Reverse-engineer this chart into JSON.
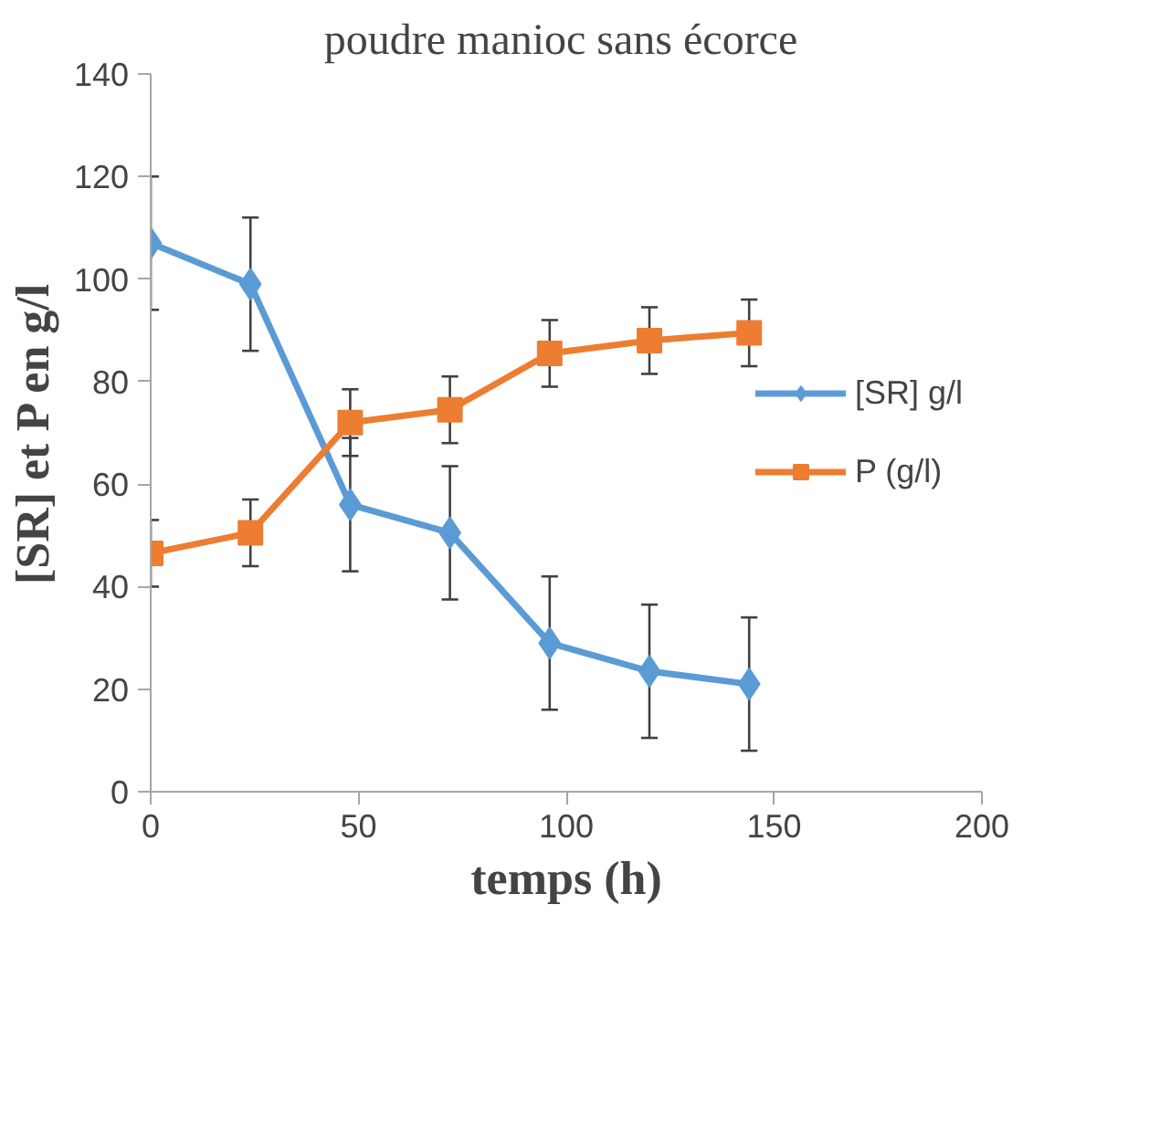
{
  "chart_data": {
    "type": "line",
    "title": "poudre  manioc sans écorce",
    "xlabel": "temps (h)",
    "ylabel": "[SR] et P en g/l",
    "x": [
      0,
      24,
      48,
      72,
      96,
      120,
      144
    ],
    "series": [
      {
        "name": "[SR] g/l",
        "color": "#5b9bd5",
        "marker": "diamond",
        "values": [
          107,
          99,
          56,
          50.5,
          29,
          23.5,
          21
        ],
        "errors": [
          13,
          13,
          13,
          13,
          13,
          13,
          13
        ]
      },
      {
        "name": "P (g/l)",
        "color": "#ed7d31",
        "marker": "square",
        "values": [
          46.5,
          50.5,
          72,
          74.5,
          85.5,
          88,
          89.5
        ],
        "errors": [
          6.5,
          6.5,
          6.5,
          6.5,
          6.5,
          6.5,
          6.5
        ]
      }
    ],
    "xlim": [
      0,
      200
    ],
    "xticks": [
      0,
      50,
      100,
      150,
      200
    ],
    "ylim": [
      0,
      140
    ],
    "yticks": [
      0,
      20,
      40,
      60,
      80,
      100,
      120,
      140
    ],
    "grid": false,
    "legend": "right"
  }
}
